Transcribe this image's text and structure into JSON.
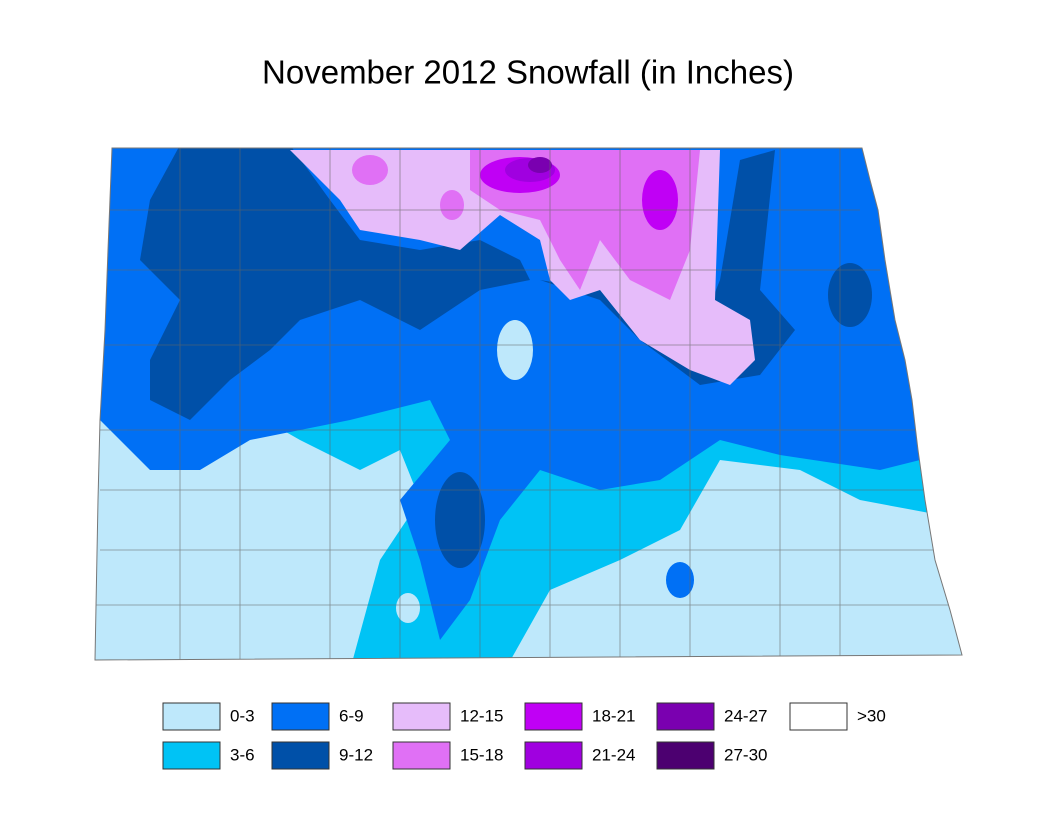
{
  "title": "November 2012 Snowfall (in Inches)",
  "legend": {
    "items": [
      {
        "label": "0-3",
        "color": "#bee8fb"
      },
      {
        "label": "3-6",
        "color": "#00c3f5"
      },
      {
        "label": "6-9",
        "color": "#0070f5"
      },
      {
        "label": "9-12",
        "color": "#0050a8"
      },
      {
        "label": "12-15",
        "color": "#e6bcfa"
      },
      {
        "label": "15-18",
        "color": "#e070f5"
      },
      {
        "label": "18-21",
        "color": "#c000f5"
      },
      {
        "label": "21-24",
        "color": "#a000e0"
      },
      {
        "label": "24-27",
        "color": "#7a00b0"
      },
      {
        "label": "27-30",
        "color": "#4c0070"
      },
      {
        "label": ">30",
        "color": "#ffffff"
      }
    ]
  }
}
